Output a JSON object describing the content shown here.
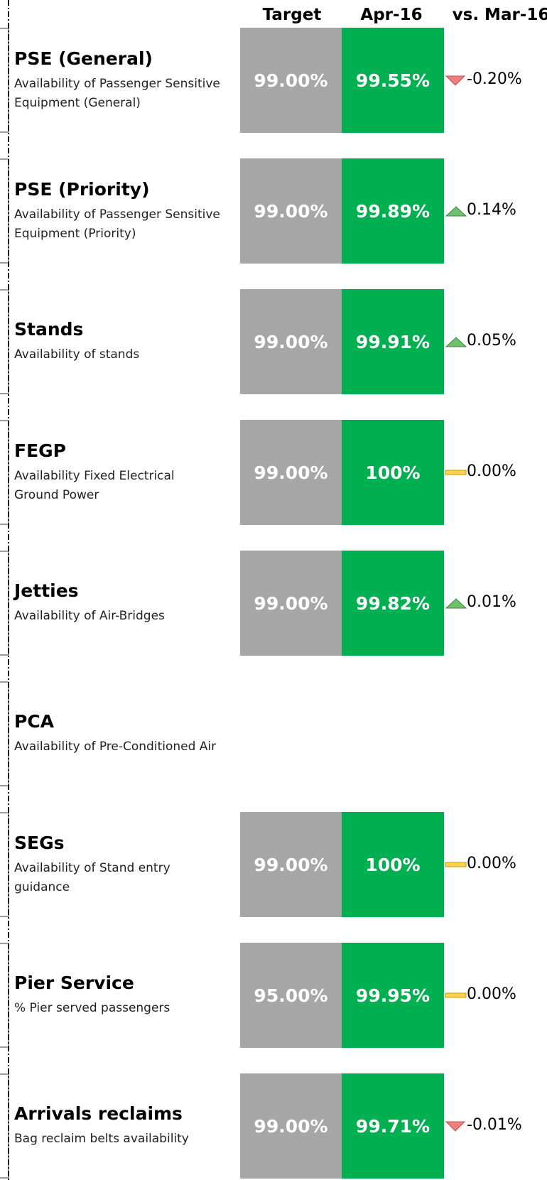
{
  "header": {
    "columns": [
      "Target",
      "Apr-16",
      "vs. Mar-16"
    ]
  },
  "rows": [
    {
      "title": "PSE (General)",
      "description": "Availability of Passenger Sensitive Equipment (General)",
      "target": "99.00%",
      "actual": "99.55%",
      "change": "-0.20%",
      "trend": "down"
    },
    {
      "title": "PSE (Priority)",
      "description": "Availability of Passenger Sensitive Equipment (Priority)",
      "target": "99.00%",
      "actual": "99.89%",
      "change": "0.14%",
      "trend": "up"
    },
    {
      "title": "Stands",
      "description": "Availability of stands",
      "target": "99.00%",
      "actual": "99.91%",
      "change": "0.05%",
      "trend": "up"
    },
    {
      "title": "FEGP",
      "description": "Availability Fixed Electrical Ground Power",
      "target": "99.00%",
      "actual": "100%",
      "change": "0.00%",
      "trend": "flat"
    },
    {
      "title": "Jetties",
      "description": "Availability of Air-Bridges",
      "target": "99.00%",
      "actual": "99.82%",
      "change": "0.01%",
      "trend": "up"
    },
    {
      "title": "PCA",
      "description": "Availability of Pre-Conditioned Air"
    },
    {
      "title": "SEGs",
      "description": "Availability of Stand entry guidance",
      "target": "99.00%",
      "actual": "100%",
      "change": "0.00%",
      "trend": "flat"
    },
    {
      "title": "Pier Service",
      "description": "% Pier served passengers",
      "target": "95.00%",
      "actual": "99.95%",
      "change": "0.00%",
      "trend": "flat"
    },
    {
      "title": "Arrivals reclaims",
      "description": "Bag reclaim belts availability",
      "target": "99.00%",
      "actual": "99.71%",
      "change": "-0.01%",
      "trend": "down"
    }
  ]
}
